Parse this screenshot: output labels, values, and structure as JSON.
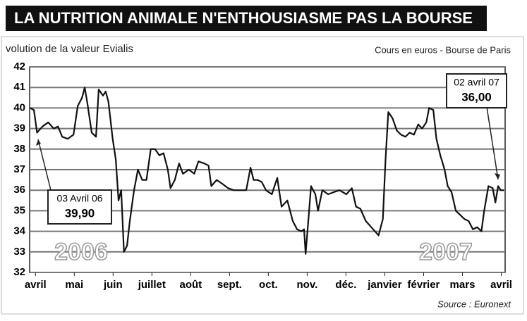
{
  "chart_data": {
    "type": "line",
    "title": "LA NUTRITION ANIMALE N'ENTHOUSIASME PAS LA BOURSE",
    "subtitle": "volution de la valeur Evialis",
    "note": "Cours en euros - Bourse de Paris",
    "source": "Source : Euronext",
    "year_labels": [
      "2006",
      "2007"
    ],
    "annotations": [
      {
        "date": "03 Avril 06",
        "value": "39,90"
      },
      {
        "date": "02 avril 07",
        "value": "36,00"
      }
    ],
    "color": "#111111",
    "grid": true,
    "x": [
      -0.14,
      -0.04,
      0.04,
      0.18,
      0.33,
      0.47,
      0.58,
      0.69,
      0.83,
      0.98,
      1.09,
      1.2,
      1.27,
      1.34,
      1.45,
      1.56,
      1.63,
      1.74,
      1.81,
      1.88,
      1.99,
      2.07,
      2.14,
      2.21,
      2.28,
      2.36,
      2.43,
      2.54,
      2.64,
      2.75,
      2.86,
      2.97,
      3.08,
      3.19,
      3.3,
      3.41,
      3.48,
      3.59,
      3.7,
      3.8,
      3.95,
      4.09,
      4.2,
      4.35,
      4.46,
      4.53,
      4.67,
      4.82,
      4.96,
      5.11,
      5.25,
      5.43,
      5.54,
      5.62,
      5.72,
      5.83,
      5.94,
      6.09,
      6.23,
      6.34,
      6.49,
      6.63,
      6.74,
      6.85,
      6.92,
      6.96,
      7.03,
      7.1,
      7.21,
      7.28,
      7.39,
      7.54,
      7.68,
      7.83,
      8.01,
      8.15,
      8.26,
      8.37,
      8.51,
      8.7,
      8.84,
      8.95,
      9.02,
      9.09,
      9.2,
      9.31,
      9.42,
      9.53,
      9.64,
      9.75,
      9.86,
      9.96,
      10.07,
      10.14,
      10.25,
      10.33,
      10.43,
      10.54,
      10.62,
      10.72,
      10.83,
      10.94,
      11.05,
      11.16,
      11.27,
      11.38,
      11.49,
      11.56,
      11.67,
      11.78,
      11.85,
      11.92,
      11.99,
      12.07
    ],
    "values": [
      40,
      39.9,
      38.8,
      39.1,
      39.3,
      39,
      39.1,
      38.6,
      38.5,
      38.7,
      40.1,
      40.5,
      41,
      40.2,
      38.8,
      38.6,
      40.9,
      40.6,
      40.8,
      40.3,
      38.5,
      37.5,
      35.5,
      36,
      33,
      33.3,
      34.5,
      36,
      37,
      36.5,
      36.5,
      38,
      38,
      37.7,
      37.8,
      37,
      36.1,
      36.5,
      37.3,
      36.8,
      37,
      36.8,
      37.4,
      37.3,
      37.2,
      36.2,
      36.5,
      36.3,
      36.1,
      36,
      36,
      36,
      37.1,
      36.5,
      36.5,
      36.4,
      36,
      35.8,
      36.6,
      35.2,
      35.5,
      34.5,
      34.1,
      34,
      34.1,
      32.9,
      34.5,
      36.2,
      35.8,
      35,
      36,
      35.8,
      35.9,
      36,
      35.8,
      36.1,
      35.2,
      35.1,
      34.5,
      34.1,
      33.8,
      34.6,
      37.5,
      39.8,
      39.5,
      38.9,
      38.7,
      38.6,
      38.8,
      38.7,
      39.2,
      39,
      39.3,
      40,
      39.9,
      38.5,
      37.7,
      37,
      36.2,
      35.9,
      35,
      34.8,
      34.6,
      34.5,
      34.1,
      34.2,
      34,
      35,
      36.2,
      36.1,
      35.4,
      36.2,
      36,
      36
    ],
    "xlim": [
      -0.15,
      12.1
    ],
    "xticks": [
      {
        "value": 0,
        "label": "avril"
      },
      {
        "value": 1,
        "label": "mai"
      },
      {
        "value": 2,
        "label": "juin"
      },
      {
        "value": 3,
        "label": "juillet"
      },
      {
        "value": 4,
        "label": "août"
      },
      {
        "value": 5,
        "label": "sept."
      },
      {
        "value": 6,
        "label": "oct."
      },
      {
        "value": 7,
        "label": "nov."
      },
      {
        "value": 8,
        "label": "déc."
      },
      {
        "value": 9,
        "label": "janvier"
      },
      {
        "value": 10,
        "label": "février"
      },
      {
        "value": 11,
        "label": "mars"
      },
      {
        "value": 12,
        "label": "avril"
      }
    ],
    "ylim": [
      32,
      42
    ],
    "yticks": [
      32,
      33,
      34,
      35,
      36,
      37,
      38,
      39,
      40,
      41,
      42
    ]
  }
}
